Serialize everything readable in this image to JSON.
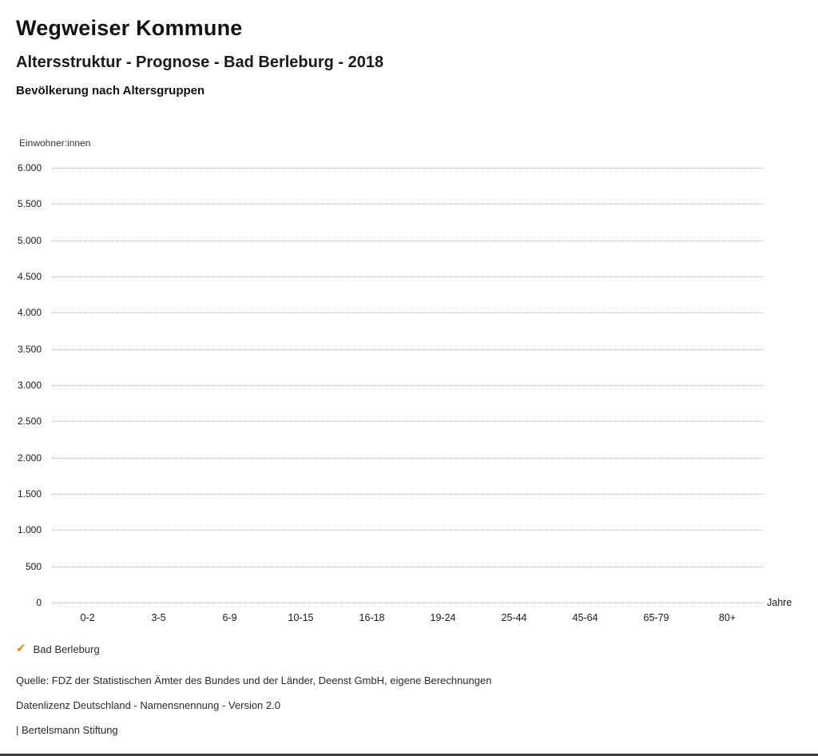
{
  "header": {
    "title": "Wegweiser Kommune",
    "subtitle": "Altersstruktur - Prognose - Bad Berleburg - 2018",
    "chart_heading": "Bevölkerung nach Altersgruppen"
  },
  "chart_data": {
    "type": "line",
    "title": "Bevölkerung nach Altersgruppen",
    "categories": [
      "0-2",
      "3-5",
      "6-9",
      "10-15",
      "16-18",
      "19-24",
      "25-44",
      "45-64",
      "65-79",
      "80+"
    ],
    "series": [
      {
        "name": "Bad Berleburg",
        "values": []
      }
    ],
    "xlabel": "Jahre",
    "ylabel": "Einwohner:innen",
    "ylim": [
      0,
      6000
    ],
    "ytick_labels": [
      "0",
      "500",
      "1.000",
      "1.500",
      "2.000",
      "2.500",
      "3.000",
      "3.500",
      "4.000",
      "4.500",
      "5.000",
      "5.500",
      "6.000"
    ],
    "grid": true,
    "gridline_style": "dotted",
    "legend_position": "bottom-left"
  },
  "legend": {
    "items": [
      {
        "label": "Bad Berleburg",
        "checked": true,
        "color": "#ef7d00"
      }
    ],
    "check_glyph": "✓"
  },
  "footer": {
    "source": "Quelle: FDZ der Statistischen Ämter des Bundes und der Länder, Deenst GmbH, eigene Berechnungen",
    "license": "Datenlizenz Deutschland - Namensnennung - Version 2.0",
    "attribution": "| Bertelsmann Stiftung"
  },
  "colors": {
    "accent_orange": "#ef7d00",
    "text": "#1a1a1a",
    "gridline": "#b3b3b3"
  }
}
